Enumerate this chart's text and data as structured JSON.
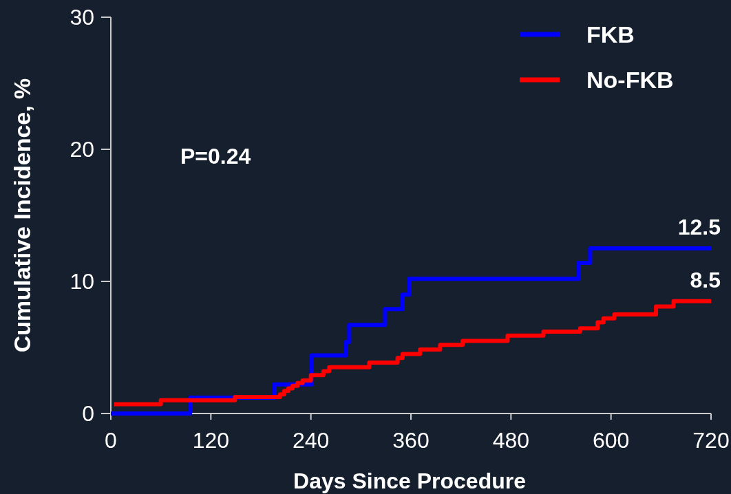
{
  "chart_data": {
    "type": "step",
    "xlabel": "Days Since Procedure",
    "ylabel": "Cumulative Incidence, %",
    "xlim": [
      0,
      720
    ],
    "xticks": [
      0,
      120,
      240,
      360,
      480,
      600,
      720
    ],
    "ylim": [
      0,
      30
    ],
    "yticks": [
      0,
      10,
      20,
      30
    ],
    "grid": false,
    "legend": "top right",
    "line_style": "solid",
    "marker": "none",
    "series": [
      {
        "name": "FKB",
        "color": "#0000ff",
        "x": [
          0,
          95,
          196,
          241,
          282,
          286,
          329,
          350,
          358,
          561,
          575,
          720
        ],
        "values": [
          0,
          1.2,
          2.2,
          4.4,
          5.4,
          6.7,
          7.9,
          9.0,
          10.2,
          11.4,
          12.5,
          12.5
        ]
      },
      {
        "name": "No-FKB",
        "color": "#ff0000",
        "x": [
          4,
          60,
          149,
          203,
          208,
          213,
          218,
          224,
          230,
          240,
          255,
          262,
          310,
          344,
          350,
          371,
          395,
          422,
          476,
          519,
          563,
          584,
          591,
          604,
          654,
          675,
          720
        ],
        "values": [
          0.7,
          1.0,
          1.25,
          1.45,
          1.7,
          1.9,
          2.1,
          2.3,
          2.5,
          2.9,
          3.2,
          3.5,
          3.85,
          4.2,
          4.5,
          4.85,
          5.2,
          5.5,
          5.9,
          6.2,
          6.45,
          6.9,
          7.2,
          7.5,
          8.1,
          8.5,
          8.5
        ]
      }
    ],
    "annotations": [
      "P=0.24",
      {
        "text": "12.5",
        "x": 720,
        "y": 12.5
      },
      {
        "text": "8.5",
        "x": 720,
        "y": 8.5
      }
    ]
  }
}
